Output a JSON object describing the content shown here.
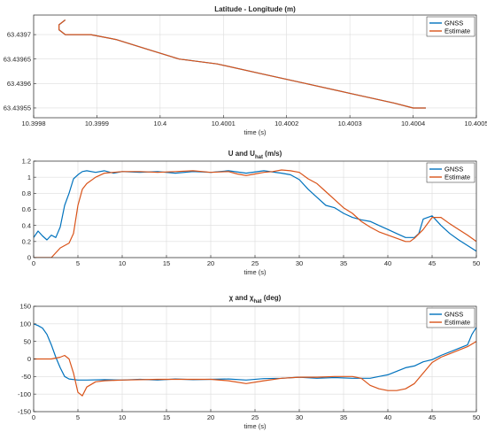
{
  "colors": {
    "gnss": "#0072BD",
    "estimate": "#D95319"
  },
  "chart_data": [
    {
      "type": "line",
      "title": "Latitude - Longitude (m)",
      "xlabel": "time (s)",
      "ylabel": "",
      "xlim": [
        10.3998,
        10.4005
      ],
      "ylim": [
        63.43953,
        63.43974
      ],
      "grid": true,
      "legend_position": "top-right",
      "xticks": [
        10.3998,
        10.3999,
        10.4,
        10.4001,
        10.4002,
        10.4003,
        10.4004,
        10.4005
      ],
      "xtick_labels": [
        "10.3998",
        "10.3999",
        "10.4",
        "10.4001",
        "10.4002",
        "10.4003",
        "10.4004",
        "10.4005"
      ],
      "yticks": [
        63.43955,
        63.4396,
        63.43965,
        63.4397
      ],
      "ytick_labels": [
        "63.43955",
        "63.4396",
        "63.43965",
        "63.4397"
      ],
      "series": [
        {
          "name": "GNSS",
          "x": [
            10.39985,
            10.39984,
            10.39984,
            10.39985,
            10.39987,
            10.39989,
            10.39993,
            10.39998,
            10.40003,
            10.40009,
            10.40016,
            10.40023,
            10.4003,
            10.40037,
            10.4004,
            10.40042
          ],
          "y": [
            63.43973,
            63.43972,
            63.43971,
            63.4397,
            63.4397,
            63.4397,
            63.43969,
            63.43967,
            63.43965,
            63.43964,
            63.43962,
            63.4396,
            63.43958,
            63.43956,
            63.43955,
            63.43955
          ]
        },
        {
          "name": "Estimate",
          "x": [
            10.39985,
            10.39984,
            10.39984,
            10.39985,
            10.39987,
            10.39989,
            10.39993,
            10.39998,
            10.40003,
            10.40009,
            10.40016,
            10.40023,
            10.4003,
            10.40037,
            10.4004,
            10.40042
          ],
          "y": [
            63.43973,
            63.43972,
            63.43971,
            63.4397,
            63.4397,
            63.4397,
            63.43969,
            63.43967,
            63.43965,
            63.43964,
            63.43962,
            63.4396,
            63.43958,
            63.43956,
            63.43955,
            63.43955
          ]
        }
      ]
    },
    {
      "type": "line",
      "title_main": "U and U",
      "title_sub": "hat",
      "title_suffix": " (m/s)",
      "xlabel": "time (s)",
      "ylabel": "",
      "xlim": [
        0,
        50
      ],
      "ylim": [
        0,
        1.2
      ],
      "grid": true,
      "legend_position": "top-right",
      "xticks": [
        0,
        5,
        10,
        15,
        20,
        25,
        30,
        35,
        40,
        45,
        50
      ],
      "xtick_labels": [
        "0",
        "5",
        "10",
        "15",
        "20",
        "25",
        "30",
        "35",
        "40",
        "45",
        "50"
      ],
      "yticks": [
        0,
        0.2,
        0.4,
        0.6,
        0.8,
        1,
        1.2
      ],
      "ytick_labels": [
        "0",
        "0.2",
        "0.4",
        "0.6",
        "0.8",
        "1",
        "1.2"
      ],
      "series": [
        {
          "name": "GNSS",
          "x": [
            0,
            0.5,
            1,
            1.5,
            2,
            2.5,
            3,
            3.5,
            4,
            4.5,
            5,
            5.5,
            6,
            7,
            8,
            9,
            10,
            12,
            14,
            16,
            18,
            20,
            22,
            24,
            26,
            28,
            29,
            30,
            31,
            32,
            33,
            34,
            35,
            36,
            37,
            38,
            39,
            40,
            41,
            42,
            43,
            43.5,
            44,
            45,
            46,
            47,
            48,
            49,
            50
          ],
          "y": [
            0.25,
            0.33,
            0.27,
            0.22,
            0.28,
            0.25,
            0.38,
            0.65,
            0.8,
            0.98,
            1.03,
            1.07,
            1.08,
            1.06,
            1.08,
            1.05,
            1.07,
            1.06,
            1.07,
            1.05,
            1.07,
            1.06,
            1.08,
            1.05,
            1.08,
            1.05,
            1.03,
            0.97,
            0.85,
            0.75,
            0.65,
            0.62,
            0.55,
            0.5,
            0.47,
            0.45,
            0.4,
            0.35,
            0.3,
            0.25,
            0.25,
            0.3,
            0.48,
            0.52,
            0.4,
            0.3,
            0.22,
            0.15,
            0.08
          ]
        },
        {
          "name": "Estimate",
          "x": [
            0,
            1,
            2,
            3,
            4,
            4.5,
            5,
            5.5,
            6,
            7,
            8,
            9,
            10,
            12,
            14,
            16,
            18,
            20,
            22,
            23,
            24,
            25,
            26,
            27,
            28,
            29,
            30,
            31,
            32,
            33,
            34,
            35,
            36,
            37,
            38,
            39,
            40,
            41,
            42,
            42.5,
            43,
            44,
            45,
            46,
            47,
            48,
            49,
            50
          ],
          "y": [
            0,
            0,
            0,
            0.12,
            0.18,
            0.3,
            0.65,
            0.85,
            0.92,
            1.0,
            1.05,
            1.06,
            1.07,
            1.07,
            1.06,
            1.07,
            1.08,
            1.06,
            1.07,
            1.04,
            1.02,
            1.04,
            1.06,
            1.07,
            1.09,
            1.08,
            1.06,
            0.98,
            0.92,
            0.82,
            0.72,
            0.62,
            0.55,
            0.45,
            0.38,
            0.32,
            0.28,
            0.24,
            0.2,
            0.2,
            0.24,
            0.35,
            0.5,
            0.5,
            0.42,
            0.35,
            0.28,
            0.2
          ]
        }
      ]
    },
    {
      "type": "line",
      "title_main": "χ and χ",
      "title_sub": "hat",
      "title_suffix": " (deg)",
      "xlabel": "time (s)",
      "ylabel": "",
      "xlim": [
        0,
        50
      ],
      "ylim": [
        -150,
        150
      ],
      "grid": true,
      "legend_position": "top-right",
      "xticks": [
        0,
        5,
        10,
        15,
        20,
        25,
        30,
        35,
        40,
        45,
        50
      ],
      "xtick_labels": [
        "0",
        "5",
        "10",
        "15",
        "20",
        "25",
        "30",
        "35",
        "40",
        "45",
        "50"
      ],
      "yticks": [
        -150,
        -100,
        -50,
        0,
        50,
        100,
        150
      ],
      "ytick_labels": [
        "-150",
        "-100",
        "-50",
        "0",
        "50",
        "100",
        "150"
      ],
      "series": [
        {
          "name": "GNSS",
          "x": [
            0,
            0.5,
            1,
            1.5,
            2,
            2.5,
            3,
            3.5,
            4,
            5,
            6,
            8,
            10,
            12,
            14,
            16,
            18,
            20,
            22,
            24,
            26,
            28,
            30,
            32,
            34,
            36,
            38,
            39,
            40,
            41,
            42,
            43,
            44,
            45,
            46,
            47,
            48,
            49,
            49.5,
            50
          ],
          "y": [
            100,
            95,
            88,
            70,
            40,
            5,
            -25,
            -50,
            -57,
            -60,
            -60,
            -59,
            -60,
            -58,
            -60,
            -57,
            -59,
            -58,
            -57,
            -60,
            -56,
            -55,
            -52,
            -55,
            -53,
            -55,
            -55,
            -50,
            -45,
            -35,
            -25,
            -20,
            -8,
            -2,
            10,
            20,
            30,
            40,
            70,
            90
          ]
        },
        {
          "name": "Estimate",
          "x": [
            0,
            1,
            2,
            3,
            3.5,
            4,
            4.5,
            5,
            5.5,
            6,
            7,
            8,
            10,
            14,
            18,
            20,
            22,
            24,
            26,
            28,
            30,
            32,
            34,
            36,
            37,
            38,
            39,
            40,
            41,
            42,
            43,
            44,
            45,
            46,
            47,
            48,
            49,
            50
          ],
          "y": [
            0,
            0,
            0,
            5,
            10,
            0,
            -40,
            -95,
            -105,
            -80,
            -65,
            -62,
            -60,
            -58,
            -58,
            -58,
            -62,
            -70,
            -62,
            -55,
            -52,
            -52,
            -50,
            -50,
            -55,
            -75,
            -85,
            -90,
            -90,
            -85,
            -70,
            -40,
            -10,
            5,
            15,
            25,
            35,
            50
          ]
        }
      ]
    }
  ]
}
